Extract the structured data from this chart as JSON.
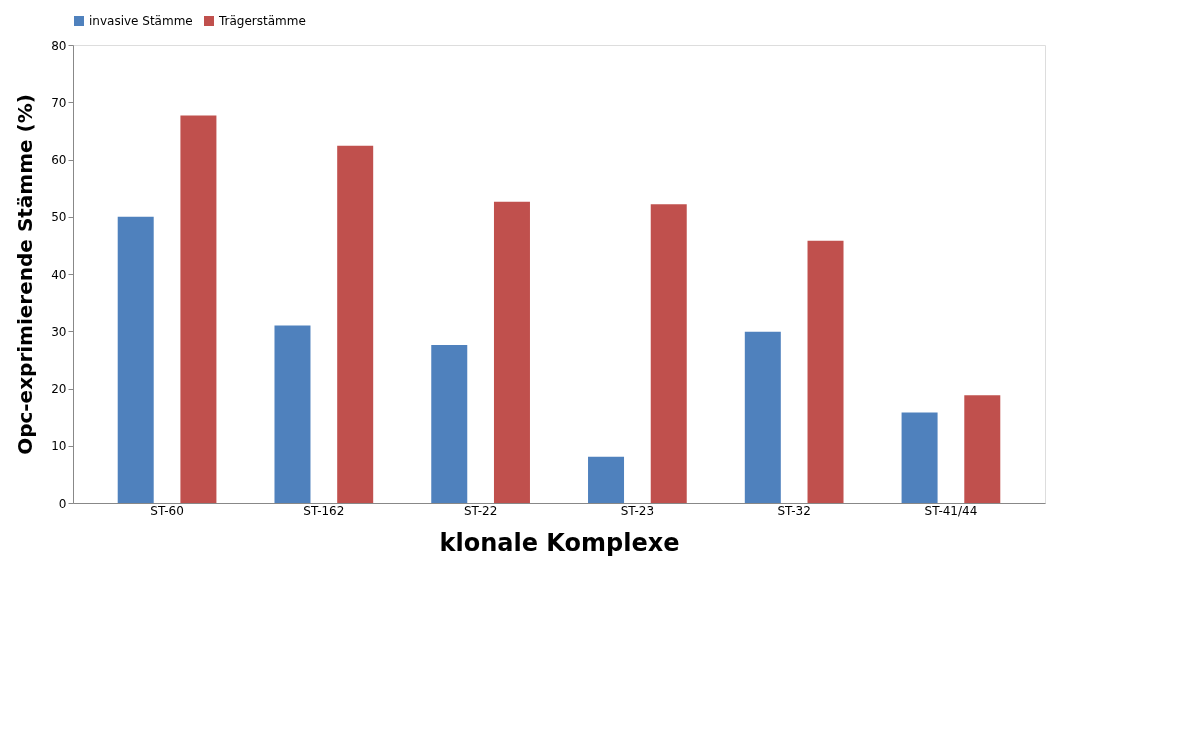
{
  "chart_data": {
    "type": "bar",
    "xlabel": "klonale Komplexe",
    "ylabel": "Opc-exprimierende Stämme (%)",
    "categories": [
      "ST-60",
      "ST-162",
      "ST-22",
      "ST-23",
      "ST-32",
      "ST-41/44"
    ],
    "series": [
      {
        "name": "invasive Stämme",
        "color": "#4f81bd",
        "values": [
          50.0,
          31.0,
          27.6,
          8.1,
          29.9,
          15.8
        ]
      },
      {
        "name": "Trägerstämme",
        "color": "#c0504d",
        "values": [
          67.7,
          62.4,
          52.6,
          52.2,
          45.8,
          18.8
        ]
      }
    ],
    "ylim": [
      0,
      80
    ],
    "yticks": [
      0,
      10,
      20,
      30,
      40,
      50,
      60,
      70,
      80
    ],
    "grid": false,
    "legend": "top"
  }
}
